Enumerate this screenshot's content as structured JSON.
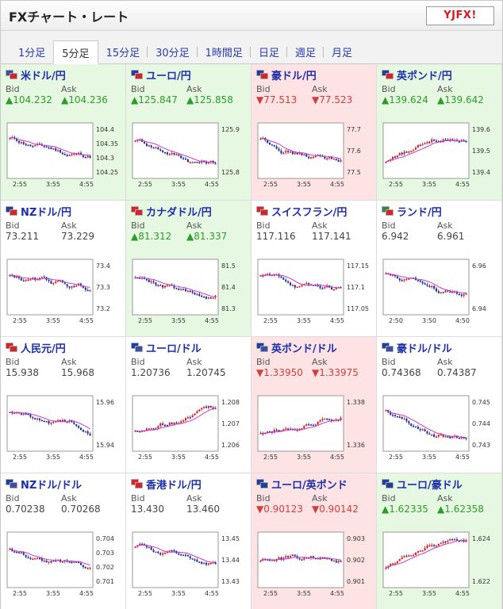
{
  "app": {
    "title": "FXチャート・レート",
    "logo": "YJFX!"
  },
  "tabs": [
    {
      "label": "1分足",
      "active": false
    },
    {
      "label": "5分足",
      "active": true
    },
    {
      "label": "15分足",
      "active": false
    },
    {
      "label": "30分足",
      "active": false
    },
    {
      "label": "1時間足",
      "active": false
    },
    {
      "label": "日足",
      "active": false
    },
    {
      "label": "週足",
      "active": false
    },
    {
      "label": "月足",
      "active": false
    }
  ],
  "labels": {
    "bid": "Bid",
    "ask": "Ask"
  },
  "colors": {
    "up_bg": "#e6f8e1",
    "down_bg": "#fde3e3",
    "up_text": "#2a9d29",
    "down_text": "#d33d3d",
    "ma_line": "#c83cc8",
    "candle_up": "#d62020",
    "candle_down": "#1a2fa0",
    "pair_link": "#1d2fa8"
  },
  "pairs": [
    {
      "name": "米ドル/円",
      "dir": "up",
      "bid": "▲104.232",
      "ask": "▲104.236",
      "yticks": [
        "104.4",
        "104.35",
        "104.3",
        "104.25"
      ],
      "xticks": [
        "2:55",
        "3:55",
        "4:55"
      ],
      "trend": "down",
      "flags": [
        "#3c4fa8",
        "#d8232a"
      ]
    },
    {
      "name": "ユーロ/円",
      "dir": "up",
      "bid": "▲125.847",
      "ask": "▲125.858",
      "yticks": [
        "125.9",
        "125.8"
      ],
      "xticks": [
        "2:55",
        "3:55",
        "4:55"
      ],
      "trend": "down",
      "flags": [
        "#1f3fa0",
        "#d8232a"
      ]
    },
    {
      "name": "豪ドル/円",
      "dir": "down",
      "bid": "▼77.513",
      "ask": "▼77.523",
      "yticks": [
        "77.7",
        "77.6",
        "77.5"
      ],
      "xticks": [
        "2:55",
        "3:55",
        "4:55"
      ],
      "trend": "down",
      "flags": [
        "#1f3fa0",
        "#d8232a"
      ]
    },
    {
      "name": "英ポンド/円",
      "dir": "up",
      "bid": "▲139.624",
      "ask": "▲139.642",
      "yticks": [
        "139.6",
        "139.5",
        "139.4"
      ],
      "xticks": [
        "2:55",
        "3:55",
        "4:55"
      ],
      "trend": "up",
      "flags": [
        "#1f3fa0",
        "#d8232a"
      ]
    },
    {
      "name": "NZドル/円",
      "dir": "flat",
      "bid": "73.211",
      "ask": "73.229",
      "yticks": [
        "73.4",
        "73.3",
        "73.2"
      ],
      "xticks": [
        "2:55",
        "3:55",
        "4:55"
      ],
      "trend": "down",
      "flags": [
        "#1f3fa0",
        "#d8232a"
      ]
    },
    {
      "name": "カナダドル/円",
      "dir": "up",
      "bid": "▲81.312",
      "ask": "▲81.337",
      "yticks": [
        "81.5",
        "81.4",
        "81.3"
      ],
      "xticks": [
        "2:55",
        "3:55",
        "4:55"
      ],
      "trend": "down",
      "flags": [
        "#d8232a",
        "#d8232a"
      ]
    },
    {
      "name": "スイスフラン/円",
      "dir": "flat",
      "bid": "117.116",
      "ask": "117.141",
      "yticks": [
        "117.15",
        "117.1",
        "117.05"
      ],
      "xticks": [
        "2:55",
        "3:55",
        "4:55"
      ],
      "trend": "down",
      "flags": [
        "#d8232a",
        "#d8232a"
      ]
    },
    {
      "name": "ランド/円",
      "dir": "flat",
      "bid": "6.942",
      "ask": "6.961",
      "yticks": [
        "6.96",
        "6.94"
      ],
      "xticks": [
        "2:50",
        "3:50",
        "4:50"
      ],
      "trend": "down",
      "flags": [
        "#2b8a3e",
        "#d8232a"
      ]
    },
    {
      "name": "人民元/円",
      "dir": "flat",
      "bid": "15.938",
      "ask": "15.968",
      "yticks": [
        "15.96",
        "15.94"
      ],
      "xticks": [
        "2:55",
        "3:55",
        "4:55"
      ],
      "trend": "down",
      "flags": [
        "#d8232a",
        "#d8232a"
      ]
    },
    {
      "name": "ユーロ/ドル",
      "dir": "flat",
      "bid": "1.20736",
      "ask": "1.20745",
      "yticks": [
        "1.208",
        "1.207",
        "1.206"
      ],
      "xticks": [
        "2:55",
        "3:55",
        "4:55"
      ],
      "trend": "up",
      "flags": [
        "#1f3fa0",
        "#3c4fa8"
      ]
    },
    {
      "name": "英ポンド/ドル",
      "dir": "down",
      "bid": "▼1.33950",
      "ask": "▼1.33975",
      "yticks": [
        "1.338",
        "1.336"
      ],
      "xticks": [
        "2:55",
        "3:55",
        "4:55"
      ],
      "trend": "up",
      "flags": [
        "#1f3fa0",
        "#3c4fa8"
      ]
    },
    {
      "name": "豪ドル/ドル",
      "dir": "flat",
      "bid": "0.74368",
      "ask": "0.74387",
      "yticks": [
        "0.745",
        "0.744",
        "0.743"
      ],
      "xticks": [
        "2:55",
        "3:55",
        "4:55"
      ],
      "trend": "down",
      "flags": [
        "#1f3fa0",
        "#3c4fa8"
      ]
    },
    {
      "name": "NZドル/ドル",
      "dir": "flat",
      "bid": "0.70238",
      "ask": "0.70268",
      "yticks": [
        "0.704",
        "0.703",
        "0.702",
        "0.701"
      ],
      "xticks": [
        "2:55",
        "3:55",
        "4:55"
      ],
      "trend": "down",
      "flags": [
        "#1f3fa0",
        "#3c4fa8"
      ]
    },
    {
      "name": "香港ドル/円",
      "dir": "flat",
      "bid": "13.430",
      "ask": "13.460",
      "yticks": [
        "13.45",
        "13.44",
        "13.43"
      ],
      "xticks": [
        "2:55",
        "3:55",
        "4:55"
      ],
      "trend": "down",
      "flags": [
        "#d8232a",
        "#d8232a"
      ]
    },
    {
      "name": "ユーロ/英ポンド",
      "dir": "down",
      "bid": "▼0.90123",
      "ask": "▼0.90142",
      "yticks": [
        "0.903",
        "0.902",
        "0.901"
      ],
      "xticks": [
        "2:55",
        "3:55",
        "4:55"
      ],
      "trend": "flat",
      "flags": [
        "#1f3fa0",
        "#1f3fa0"
      ]
    },
    {
      "name": "ユーロ/豪ドル",
      "dir": "up",
      "bid": "▲1.62335",
      "ask": "▲1.62358",
      "yticks": [
        "1.624",
        "1.622"
      ],
      "xticks": [
        "2:55",
        "3:55",
        "4:55"
      ],
      "trend": "up",
      "flags": [
        "#1f3fa0",
        "#1f3fa0"
      ]
    }
  ]
}
